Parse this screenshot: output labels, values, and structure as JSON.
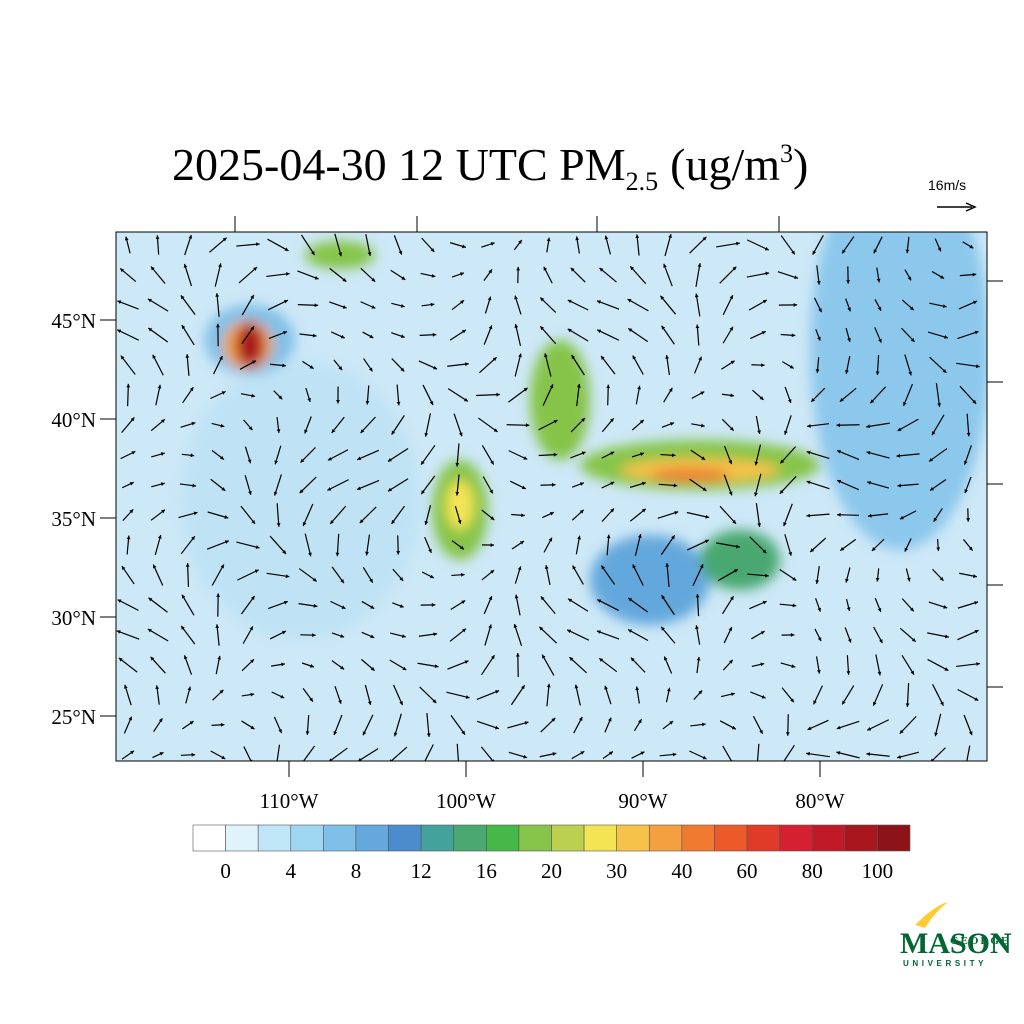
{
  "map": {
    "title": "2025-04-30 12 UTC PM",
    "title_subscript": "2.5",
    "title_units": "(ug/m",
    "title_superscript": "3",
    "title_close": ")",
    "vector_label": "16m/s",
    "lat_ticks": [
      {
        "value": 25,
        "label": "25°N"
      },
      {
        "value": 30,
        "label": "30°N"
      },
      {
        "value": 35,
        "label": "35°N"
      },
      {
        "value": 40,
        "label": "40°N"
      },
      {
        "value": 45,
        "label": "45°N"
      }
    ],
    "lon_ticks": [
      {
        "value": -110,
        "label": "110°W"
      },
      {
        "value": -100,
        "label": "100°W"
      },
      {
        "value": -90,
        "label": "90°W"
      },
      {
        "value": -80,
        "label": "80°W"
      }
    ],
    "colorbar": {
      "ticks": [
        0,
        4,
        8,
        12,
        16,
        20,
        30,
        40,
        60,
        80,
        100
      ],
      "colors": [
        "#ffffff",
        "#dff3fb",
        "#bfe6f7",
        "#9fd6f2",
        "#7fbfe8",
        "#64a8dc",
        "#4a8ccc",
        "#44a29c",
        "#4aa870",
        "#46b84a",
        "#86c44a",
        "#bcd050",
        "#f4e454",
        "#f6c24a",
        "#f4a040",
        "#f07a30",
        "#ec5a2a",
        "#e03a28",
        "#d42030",
        "#c01a28",
        "#a8161e",
        "#8c1418"
      ]
    },
    "logo": {
      "top": "GEORGE",
      "main": "MASON",
      "bottom": "UNIVERSITY"
    }
  }
}
